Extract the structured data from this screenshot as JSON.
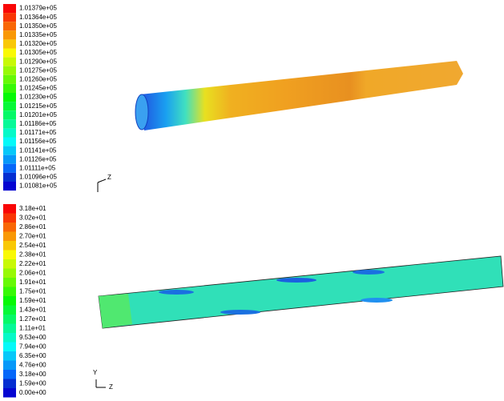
{
  "panels": [
    {
      "legend": {
        "labels": [
          "1.01379e+05",
          "1.01364e+05",
          "1.01350e+05",
          "1.01335e+05",
          "1.01320e+05",
          "1.01305e+05",
          "1.01290e+05",
          "1.01275e+05",
          "1.01260e+05",
          "1.01245e+05",
          "1.01230e+05",
          "1.01215e+05",
          "1.01201e+05",
          "1.01186e+05",
          "1.01171e+05",
          "1.01156e+05",
          "1.01141e+05",
          "1.01126e+05",
          "1.01111e+05",
          "1.01096e+05",
          "1.01081e+05"
        ]
      },
      "axes": {
        "labels": [
          "Z"
        ]
      }
    },
    {
      "legend": {
        "labels": [
          "3.18e+01",
          "3.02e+01",
          "2.86e+01",
          "2.70e+01",
          "2.54e+01",
          "2.38e+01",
          "2.22e+01",
          "2.06e+01",
          "1.91e+01",
          "1.75e+01",
          "1.59e+01",
          "1.43e+01",
          "1.27e+01",
          "1.11e+01",
          "9.53e+00",
          "7.94e+00",
          "6.35e+00",
          "4.76e+00",
          "3.18e+00",
          "1.59e+00",
          "0.00e+00"
        ]
      },
      "axes": {
        "labels": [
          "Y",
          "Z"
        ]
      }
    }
  ]
}
